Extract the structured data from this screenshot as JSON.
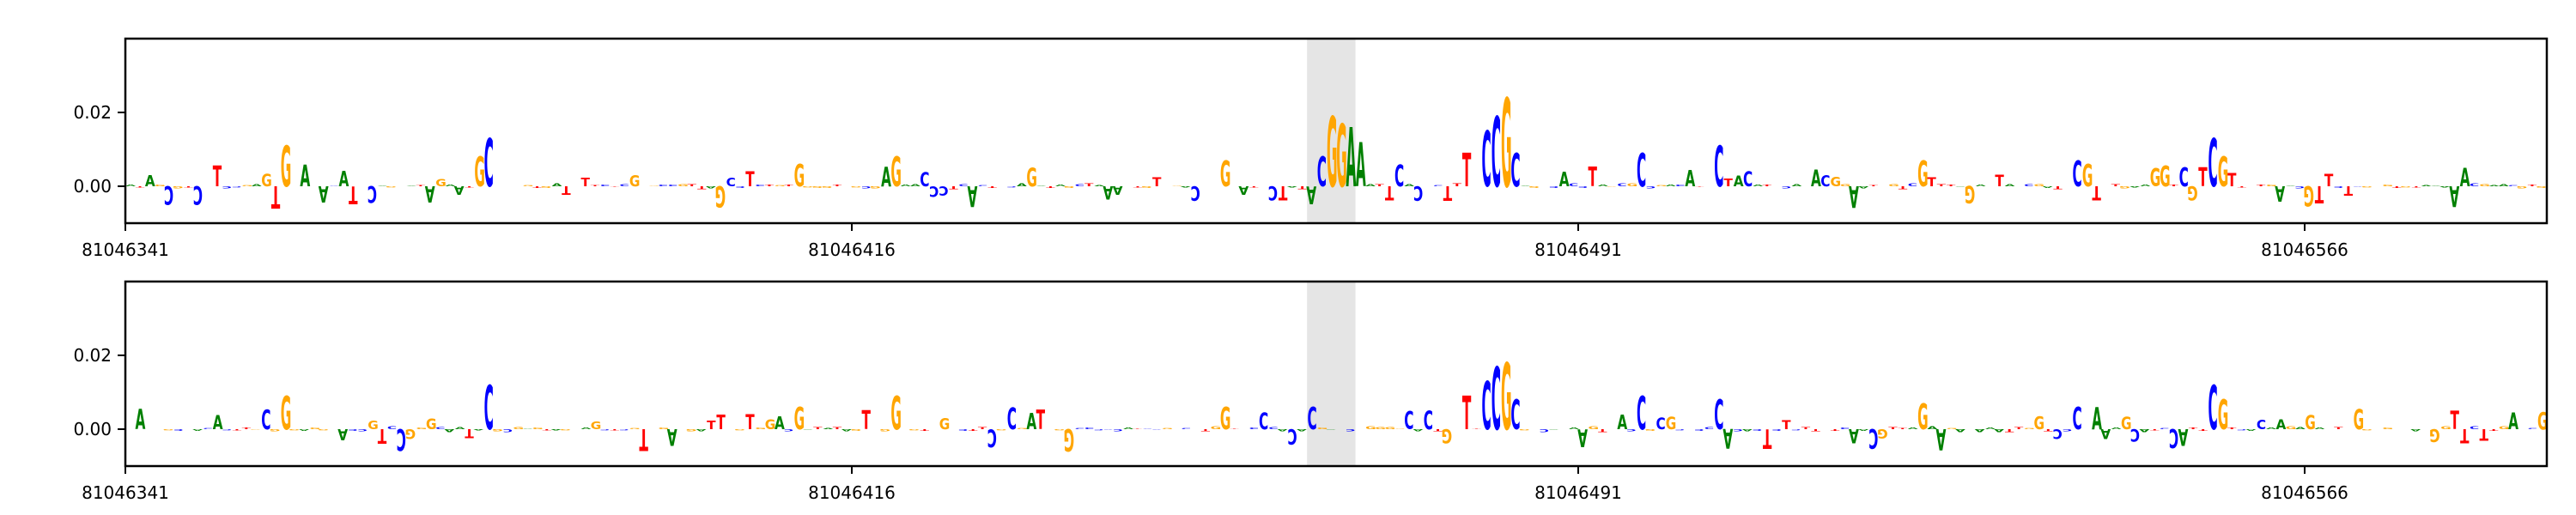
{
  "colors": {
    "A": "#008000",
    "C": "#0000ff",
    "G": "#ffa500",
    "T": "#ff0000",
    "highlight": "#e5e5e5"
  },
  "chart_data": [
    {
      "type": "sequence-logo",
      "x_tick_labels": [
        "81046341",
        "81046416",
        "81046491",
        "81046566"
      ],
      "x_ticks": [
        81046341,
        81046416,
        81046491,
        81046566
      ],
      "xlim": [
        81046341,
        81046591
      ],
      "y_tick_labels": [
        "0.00",
        "0.02"
      ],
      "y_ticks": [
        0.0,
        0.02
      ],
      "ylim": [
        -0.01,
        0.04
      ],
      "highlight_region": [
        81046463,
        81046468
      ],
      "peaks": [
        {
          "position": 81046357,
          "base": "G",
          "value": 0.011
        },
        {
          "position": 81046378,
          "base": "C",
          "value": 0.013
        },
        {
          "position": 81046377,
          "base": "G",
          "value": 0.008
        },
        {
          "position": 81046405,
          "base": "T",
          "value": 0.004
        },
        {
          "position": 81046410,
          "base": "G",
          "value": 0.006
        },
        {
          "position": 81046420,
          "base": "G",
          "value": 0.008
        },
        {
          "position": 81046454,
          "base": "G",
          "value": 0.007
        },
        {
          "position": 81046464,
          "base": "C",
          "value": 0.008
        },
        {
          "position": 81046465,
          "base": "G",
          "value": 0.019
        },
        {
          "position": 81046466,
          "base": "G",
          "value": 0.017
        },
        {
          "position": 81046467,
          "base": "A",
          "value": 0.016
        },
        {
          "position": 81046468,
          "base": "A",
          "value": 0.012
        },
        {
          "position": 81046479,
          "base": "T",
          "value": 0.009
        },
        {
          "position": 81046481,
          "base": "C",
          "value": 0.015
        },
        {
          "position": 81046482,
          "base": "C",
          "value": 0.019
        },
        {
          "position": 81046483,
          "base": "G",
          "value": 0.024
        },
        {
          "position": 81046484,
          "base": "C",
          "value": 0.009
        },
        {
          "position": 81046497,
          "base": "C",
          "value": 0.009
        },
        {
          "position": 81046505,
          "base": "C",
          "value": 0.011
        },
        {
          "position": 81046526,
          "base": "G",
          "value": 0.007
        },
        {
          "position": 81046542,
          "base": "C",
          "value": 0.007
        },
        {
          "position": 81046543,
          "base": "G",
          "value": 0.006
        },
        {
          "position": 81046556,
          "base": "C",
          "value": 0.013
        },
        {
          "position": 81046557,
          "base": "G",
          "value": 0.008
        }
      ]
    },
    {
      "type": "sequence-logo",
      "x_tick_labels": [
        "81046341",
        "81046416",
        "81046491",
        "81046566"
      ],
      "x_ticks": [
        81046341,
        81046416,
        81046491,
        81046566
      ],
      "xlim": [
        81046341,
        81046591
      ],
      "y_tick_labels": [
        "0.00",
        "0.02"
      ],
      "y_ticks": [
        0.0,
        0.02
      ],
      "ylim": [
        -0.01,
        0.04
      ],
      "highlight_region": [
        81046463,
        81046468
      ],
      "peaks": [
        {
          "position": 81046357,
          "base": "G",
          "value": 0.009
        },
        {
          "position": 81046378,
          "base": "C",
          "value": 0.012
        },
        {
          "position": 81046405,
          "base": "T",
          "value": 0.004
        },
        {
          "position": 81046410,
          "base": "G",
          "value": 0.006
        },
        {
          "position": 81046420,
          "base": "G",
          "value": 0.009
        },
        {
          "position": 81046454,
          "base": "G",
          "value": 0.006
        },
        {
          "position": 81046463,
          "base": "C",
          "value": 0.006
        },
        {
          "position": 81046479,
          "base": "T",
          "value": 0.009
        },
        {
          "position": 81046481,
          "base": "C",
          "value": 0.013
        },
        {
          "position": 81046482,
          "base": "C",
          "value": 0.017
        },
        {
          "position": 81046483,
          "base": "G",
          "value": 0.018
        },
        {
          "position": 81046484,
          "base": "C",
          "value": 0.008
        },
        {
          "position": 81046497,
          "base": "C",
          "value": 0.009
        },
        {
          "position": 81046505,
          "base": "C",
          "value": 0.008
        },
        {
          "position": 81046526,
          "base": "G",
          "value": 0.007
        },
        {
          "position": 81046542,
          "base": "C",
          "value": 0.006
        },
        {
          "position": 81046556,
          "base": "C",
          "value": 0.012
        },
        {
          "position": 81046557,
          "base": "G",
          "value": 0.008
        }
      ]
    }
  ]
}
